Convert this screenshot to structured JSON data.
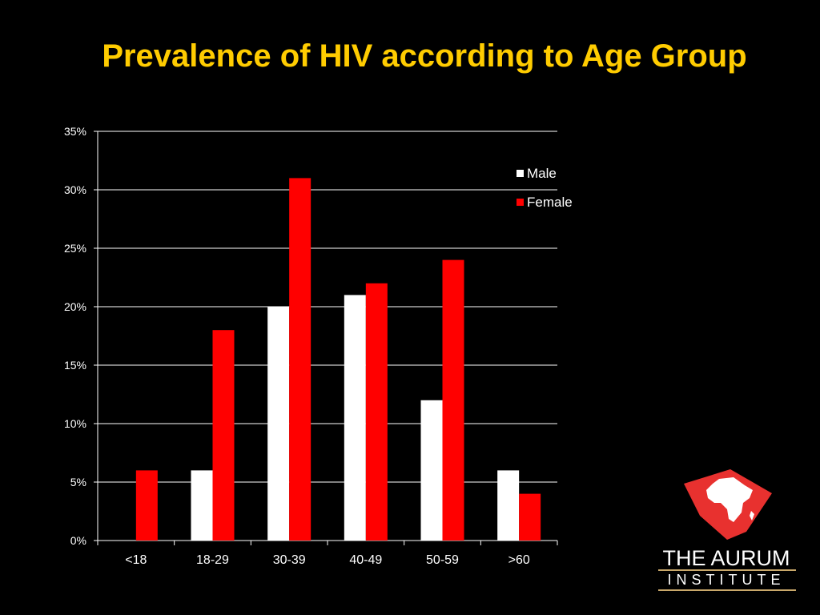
{
  "slide": {
    "title": "Prevalence of HIV according to Age Group"
  },
  "chart_data": {
    "type": "bar",
    "title": "",
    "xlabel": "",
    "ylabel": "",
    "categories": [
      "<18",
      "18-29",
      "30-39",
      "40-49",
      "50-59",
      ">60"
    ],
    "series": [
      {
        "name": "Male",
        "values": [
          0,
          6,
          20,
          21,
          12,
          6
        ],
        "color": "#FFFFFF"
      },
      {
        "name": "Female",
        "values": [
          6,
          18,
          31,
          22,
          24,
          4
        ],
        "color": "#FF0000"
      }
    ],
    "ylim": [
      0,
      35
    ],
    "yticks": [
      0,
      5,
      10,
      15,
      20,
      25,
      30,
      35
    ],
    "ytick_labels": [
      "0%",
      "5%",
      "10%",
      "15%",
      "20%",
      "25%",
      "30%",
      "35%"
    ],
    "grid": true,
    "legend": "right"
  },
  "logo": {
    "line1": "THE AURUM",
    "line2": "INSTITUTE",
    "accent_color": "#E8312F",
    "rule_color": "#C9A86A"
  }
}
